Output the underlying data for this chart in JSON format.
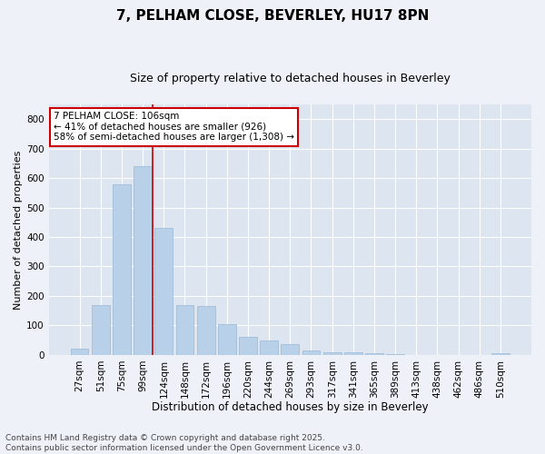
{
  "title1": "7, PELHAM CLOSE, BEVERLEY, HU17 8PN",
  "title2": "Size of property relative to detached houses in Beverley",
  "xlabel": "Distribution of detached houses by size in Beverley",
  "ylabel": "Number of detached properties",
  "categories": [
    "27sqm",
    "51sqm",
    "75sqm",
    "99sqm",
    "124sqm",
    "148sqm",
    "172sqm",
    "196sqm",
    "220sqm",
    "244sqm",
    "269sqm",
    "293sqm",
    "317sqm",
    "341sqm",
    "365sqm",
    "389sqm",
    "413sqm",
    "438sqm",
    "462sqm",
    "486sqm",
    "510sqm"
  ],
  "values": [
    20,
    170,
    580,
    640,
    430,
    170,
    165,
    105,
    60,
    50,
    35,
    15,
    10,
    8,
    5,
    2,
    1,
    0,
    0,
    0,
    5
  ],
  "bar_color": "#b8d0e8",
  "bar_edge_color": "#9ab8d8",
  "vline_color": "#cc0000",
  "vline_pos": 3.45,
  "annotation_text": "7 PELHAM CLOSE: 106sqm\n← 41% of detached houses are smaller (926)\n58% of semi-detached houses are larger (1,308) →",
  "annotation_box_color": "#ffffff",
  "annotation_box_edge": "#cc0000",
  "ylim": [
    0,
    850
  ],
  "yticks": [
    0,
    100,
    200,
    300,
    400,
    500,
    600,
    700,
    800
  ],
  "fig_bg": "#eef2f8",
  "ax_bg": "#dde6f0",
  "grid_color": "#ffffff",
  "footer": "Contains HM Land Registry data © Crown copyright and database right 2025.\nContains public sector information licensed under the Open Government Licence v3.0.",
  "title1_fontsize": 11,
  "title2_fontsize": 9,
  "xlabel_fontsize": 8.5,
  "ylabel_fontsize": 8,
  "tick_fontsize": 7.5,
  "annotation_fontsize": 7.5,
  "footer_fontsize": 6.5
}
